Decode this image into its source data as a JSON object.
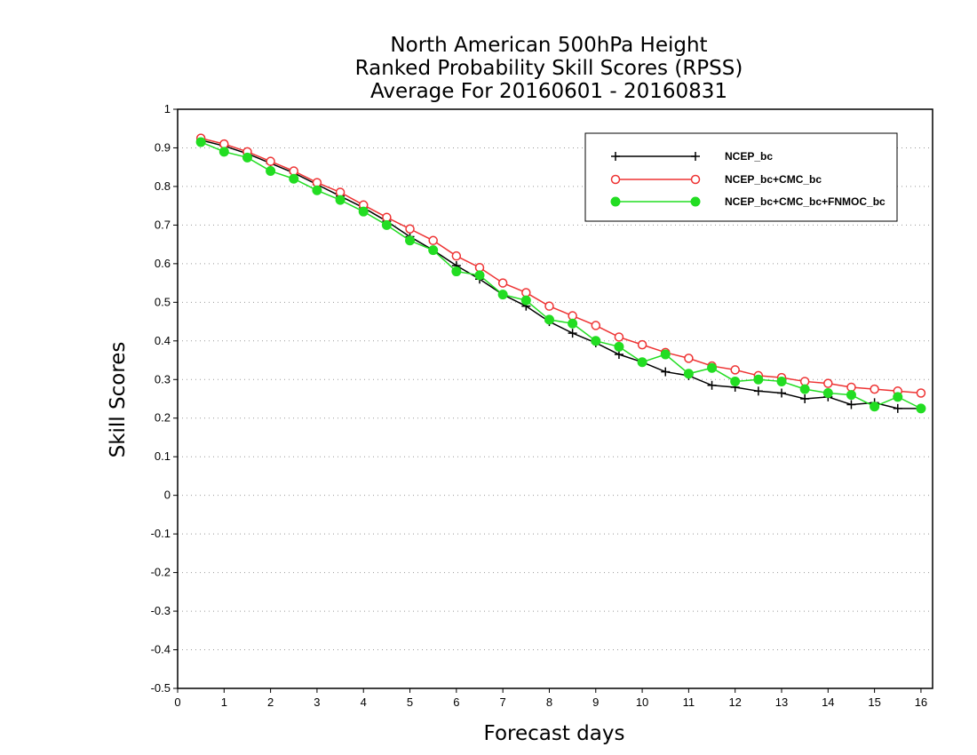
{
  "chart_data": {
    "type": "line",
    "title_lines": [
      "North American 500hPa Height",
      "Ranked Probability Skill Scores (RPSS)",
      "Average For 20160601 - 20160831"
    ],
    "xlabel": "Forecast days",
    "ylabel": "Skill Scores",
    "xlim": [
      0,
      16.25
    ],
    "ylim": [
      -0.5,
      1
    ],
    "x_ticks": [
      0,
      1,
      2,
      3,
      4,
      5,
      6,
      7,
      8,
      9,
      10,
      11,
      12,
      13,
      14,
      15,
      16
    ],
    "y_ticks": [
      "-0.5",
      "-0.4",
      "-0.3",
      "-0.2",
      "-0.1",
      "0",
      "0.1",
      "0.2",
      "0.3",
      "0.4",
      "0.5",
      "0.6",
      "0.7",
      "0.8",
      "0.9",
      "1"
    ],
    "grid": "horizontal-dotted",
    "legend_position": "top-right",
    "x": [
      0.5,
      1.0,
      1.5,
      2.0,
      2.5,
      3.0,
      3.5,
      4.0,
      4.5,
      5.0,
      5.5,
      6.0,
      6.5,
      7.0,
      7.5,
      8.0,
      8.5,
      9.0,
      9.5,
      10.0,
      10.5,
      11.0,
      11.5,
      12.0,
      12.5,
      13.0,
      13.5,
      14.0,
      14.5,
      15.0,
      15.5,
      16.0
    ],
    "series": [
      {
        "name": "NCEP_bc",
        "color": "#000000",
        "marker": "plus",
        "values": [
          0.92,
          0.905,
          0.885,
          0.86,
          0.835,
          0.805,
          0.775,
          0.745,
          0.71,
          0.67,
          0.635,
          0.595,
          0.56,
          0.52,
          0.49,
          0.45,
          0.42,
          0.395,
          0.365,
          0.345,
          0.32,
          0.31,
          0.285,
          0.28,
          0.27,
          0.265,
          0.25,
          0.255,
          0.235,
          0.24,
          0.225,
          0.225
        ]
      },
      {
        "name": "NCEP_bc+CMC_bc",
        "color": "#ee3333",
        "marker": "open-circle",
        "values": [
          0.925,
          0.91,
          0.89,
          0.865,
          0.84,
          0.81,
          0.785,
          0.752,
          0.72,
          0.69,
          0.66,
          0.62,
          0.59,
          0.55,
          0.525,
          0.49,
          0.465,
          0.44,
          0.41,
          0.39,
          0.37,
          0.355,
          0.335,
          0.325,
          0.31,
          0.305,
          0.295,
          0.29,
          0.28,
          0.275,
          0.27,
          0.265
        ]
      },
      {
        "name": "NCEP_bc+CMC_bc+FNMOC_bc",
        "color": "#22dd22",
        "marker": "filled-circle",
        "values": [
          0.915,
          0.89,
          0.875,
          0.84,
          0.82,
          0.79,
          0.765,
          0.735,
          0.7,
          0.66,
          0.635,
          0.58,
          0.57,
          0.52,
          0.505,
          0.455,
          0.445,
          0.4,
          0.385,
          0.345,
          0.365,
          0.315,
          0.33,
          0.295,
          0.3,
          0.295,
          0.275,
          0.265,
          0.26,
          0.23,
          0.255,
          0.225
        ]
      }
    ]
  }
}
